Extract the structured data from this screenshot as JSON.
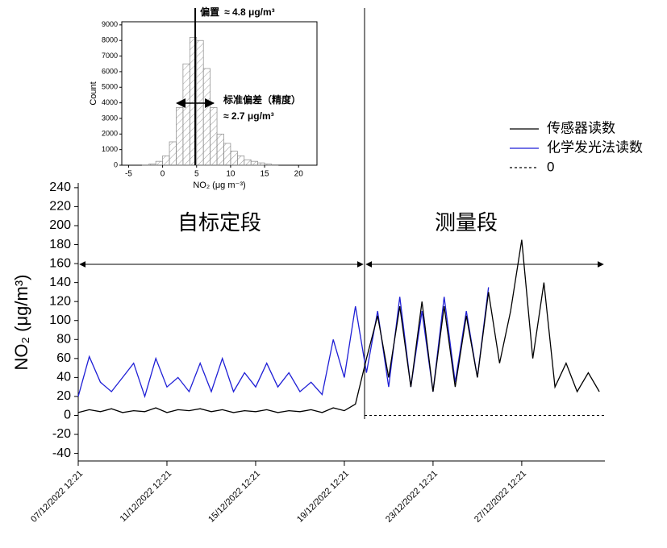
{
  "chart_data": [
    {
      "type": "line",
      "y_label": "NO₂ (μg/m³)",
      "annotations": {
        "calibration": "自标定段",
        "measurement": "测量段"
      },
      "x": [
        "07/12/2022 12:21",
        "08/12/2022 00:21",
        "08/12/2022 12:21",
        "09/12/2022 00:21",
        "09/12/2022 12:21",
        "10/12/2022 00:21",
        "10/12/2022 12:21",
        "11/12/2022 00:21",
        "11/12/2022 12:21",
        "12/12/2022 00:21",
        "12/12/2022 12:21",
        "13/12/2022 00:21",
        "13/12/2022 12:21",
        "14/12/2022 00:21",
        "14/12/2022 12:21",
        "15/12/2022 00:21",
        "15/12/2022 12:21",
        "16/12/2022 00:21",
        "16/12/2022 12:21",
        "17/12/2022 00:21",
        "17/12/2022 12:21",
        "18/12/2022 00:21",
        "18/12/2022 12:21",
        "19/12/2022 00:21",
        "19/12/2022 12:21",
        "20/12/2022 00:21",
        "20/12/2022 12:21",
        "21/12/2022 00:21",
        "21/12/2022 12:21",
        "22/12/2022 00:21",
        "22/12/2022 12:21",
        "23/12/2022 00:21",
        "23/12/2022 12:21",
        "24/12/2022 00:21",
        "24/12/2022 12:21",
        "25/12/2022 00:21",
        "25/12/2022 12:21",
        "26/12/2022 00:21",
        "26/12/2022 12:21",
        "27/12/2022 00:21",
        "27/12/2022 12:21",
        "28/12/2022 00:21",
        "28/12/2022 12:21",
        "29/12/2022 00:21",
        "29/12/2022 12:21",
        "30/12/2022 00:21",
        "30/12/2022 12:21",
        "31/12/2022 00:21"
      ],
      "xlim": [
        "07/12/2022 12:21",
        "31/12/2022 06:21"
      ],
      "xticks": [
        "07/12/2022 12:21",
        "11/12/2022 12:21",
        "15/12/2022 12:21",
        "19/12/2022 12:21",
        "23/12/2022 12:21",
        "27/12/2022 12:21"
      ],
      "ylim": [
        -48,
        245
      ],
      "yticks": [
        -40,
        -20,
        0,
        20,
        40,
        60,
        80,
        100,
        120,
        140,
        160,
        180,
        200,
        220,
        240
      ],
      "series": [
        {
          "name": "传感器读数",
          "color": "#000000",
          "values": [
            3,
            6,
            4,
            7,
            3,
            5,
            4,
            8,
            3,
            6,
            5,
            7,
            4,
            6,
            3,
            5,
            4,
            6,
            3,
            5,
            4,
            6,
            3,
            8,
            5,
            12,
            60,
            105,
            40,
            115,
            30,
            120,
            25,
            115,
            30,
            105,
            40,
            130,
            55,
            110,
            185,
            60,
            140,
            30,
            55,
            25,
            45,
            25
          ]
        },
        {
          "name": "化学发光法读数",
          "color": "#1f1fd6",
          "values": [
            20,
            62,
            35,
            25,
            40,
            55,
            20,
            60,
            30,
            40,
            25,
            55,
            25,
            60,
            25,
            45,
            30,
            55,
            30,
            45,
            25,
            35,
            22,
            80,
            40,
            115,
            45,
            110,
            30,
            125,
            30,
            110,
            25,
            125,
            35,
            110,
            40,
            135,
            null,
            null,
            null,
            null,
            null,
            null,
            null,
            null,
            null,
            null
          ]
        }
      ],
      "zero_line": {
        "name": "0",
        "value": 0
      },
      "legend": "upper right"
    },
    {
      "type": "histogram",
      "x_label": "NO₂ (μg m⁻³)",
      "y_label": "Count",
      "bins": [
        -3,
        -2,
        -1,
        0,
        1,
        2,
        3,
        4,
        5,
        6,
        7,
        8,
        9,
        10,
        11,
        12,
        13,
        14,
        15,
        16,
        17
      ],
      "counts": [
        20,
        80,
        250,
        600,
        1500,
        3700,
        6500,
        8200,
        8000,
        6200,
        3700,
        2000,
        1400,
        900,
        600,
        350,
        250,
        150,
        80,
        30
      ],
      "xlim": [
        -6,
        22.7
      ],
      "xticks": [
        -5,
        0,
        5,
        10,
        15,
        20
      ],
      "ylim": [
        0,
        9200
      ],
      "yticks": [
        0,
        1000,
        2000,
        3000,
        4000,
        5000,
        6000,
        7000,
        8000,
        9000
      ],
      "bias": {
        "label": "偏置",
        "value": 4.8,
        "value_label": "≈ 4.8 μg/m³"
      },
      "std": {
        "label": "标准偏差（精度）",
        "value": 2.7,
        "value_label": "≈ 2.7 μg/m³"
      }
    }
  ]
}
